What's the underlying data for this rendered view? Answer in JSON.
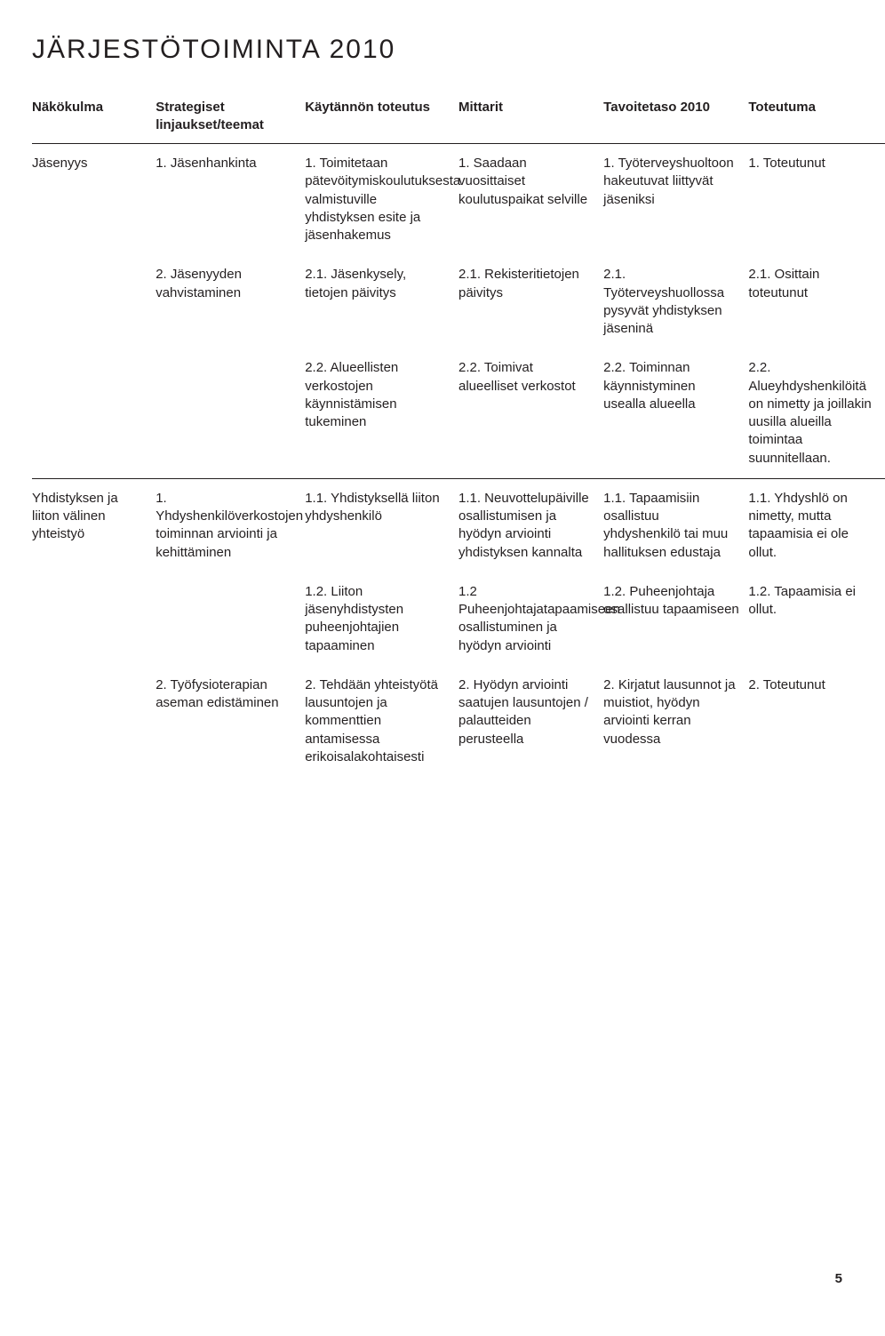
{
  "title": "JÄRJESTÖTOIMINTA 2010",
  "page_number": "5",
  "headers": {
    "c0": "Näkökulma",
    "c1": "Strategiset linjaukset/teemat",
    "c2": "Käytännön toteutus",
    "c3": "Mittarit",
    "c4": "Tavoitetaso 2010",
    "c5": "Toteutuma"
  },
  "rows": [
    {
      "c0": "Jäsenyys",
      "c1": "1. Jäsenhankinta",
      "c2": "1. Toimitetaan pätevöitymiskoulutuksesta valmistuville yhdistyksen esite ja jäsenhakemus",
      "c3": "1. Saadaan vuosittaiset koulutuspaikat selville",
      "c4": "1. Työterveyshuoltoon hakeutuvat liittyvät jäseniksi",
      "c5": "1. Toteutunut",
      "sep": false
    },
    {
      "c0": "",
      "c1": "2. Jäsenyyden vahvistaminen",
      "c2": "2.1. Jäsenkysely, tietojen päivitys",
      "c3": "2.1. Rekisteritietojen päivitys",
      "c4": "2.1. Työterveyshuollossa pysyvät yhdistyksen jäseninä",
      "c5": "2.1. Osittain toteutunut",
      "sep": false
    },
    {
      "c0": "",
      "c1": "",
      "c2": "2.2. Alueellisten verkostojen käynnistämisen tukeminen",
      "c3": "2.2. Toimivat alueelliset verkostot",
      "c4": "2.2. Toiminnan käynnistyminen usealla alueella",
      "c5": "2.2. Alueyhdyshenkilöitä on nimetty ja joillakin uusilla alueilla toimintaa suunnitellaan.",
      "sep": true
    },
    {
      "c0": "Yhdistyksen ja liiton välinen yhteistyö",
      "c1": "1. Yhdyshenkilöverkostojen toiminnan arviointi ja kehittäminen",
      "c2": "1.1. Yhdistyksellä liiton yhdyshenkilö",
      "c3": "1.1. Neuvottelupäiville osallistumisen ja hyödyn arviointi yhdistyksen kannalta",
      "c4": "1.1. Tapaamisiin osallistuu yhdyshenkilö tai muu hallituksen edustaja",
      "c5": "1.1. Yhdyshlö on nimetty, mutta tapaamisia ei ole ollut.",
      "sep": false
    },
    {
      "c0": "",
      "c1": "",
      "c2": "1.2. Liiton jäsenyhdistysten puheenjohtajien tapaaminen",
      "c3": "1.2 Puheenjohtajatapaamiseen osallistuminen ja hyödyn arviointi",
      "c4": "1.2. Puheenjohtaja osallistuu tapaamiseen",
      "c5": "1.2. Tapaamisia ei ollut.",
      "sep": false
    },
    {
      "c0": "",
      "c1": "2. Työfysioterapian aseman edistäminen",
      "c2": "2. Tehdään yhteistyötä lausuntojen ja kommenttien antamisessa erikoisalakohtaisesti",
      "c3": "2. Hyödyn arviointi saatujen lausuntojen / palautteiden perusteella",
      "c4": "2. Kirjatut lausunnot ja muistiot, hyödyn arviointi kerran vuodessa",
      "c5": "2. Toteutunut",
      "sep": false
    }
  ]
}
